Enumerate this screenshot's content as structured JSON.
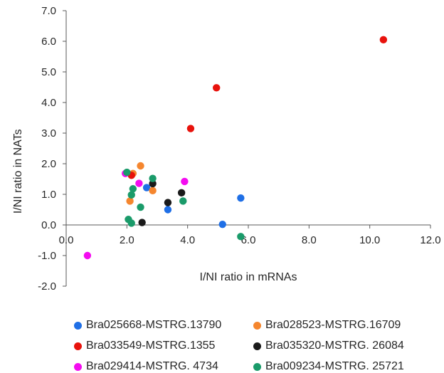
{
  "chart_data": {
    "type": "scatter",
    "title": "",
    "xlabel": "I/NI ratio in mRNAs",
    "ylabel": "I/NI ratio in NATs",
    "xlim": [
      0,
      12
    ],
    "ylim": [
      -2,
      7
    ],
    "x_ticks": [
      "0.0",
      "2.0",
      "4.0",
      "6.0",
      "8.0",
      "10.0",
      "12.0"
    ],
    "y_ticks": [
      "-2.0",
      "-1.0",
      "0.0",
      "1.0",
      "2.0",
      "3.0",
      "4.0",
      "5.0",
      "6.0",
      "7.0"
    ],
    "grid": false,
    "legend_position": "bottom",
    "series": [
      {
        "name": "Bra025668-MSTRG.13790",
        "color": "#1f6fe6",
        "points": [
          [
            2.65,
            1.22
          ],
          [
            3.35,
            0.5
          ],
          [
            5.15,
            0.02
          ],
          [
            5.75,
            0.88
          ]
        ]
      },
      {
        "name": "Bra028523-MSTRG.16709",
        "color": "#f5862e",
        "points": [
          [
            2.1,
            0.78
          ],
          [
            2.2,
            1.68
          ],
          [
            2.45,
            1.93
          ],
          [
            2.85,
            1.12
          ]
        ]
      },
      {
        "name": "Bra033549-MSTRG.1355",
        "color": "#e8120c",
        "points": [
          [
            2.15,
            1.62
          ],
          [
            4.1,
            3.15
          ],
          [
            4.95,
            4.48
          ],
          [
            10.45,
            6.05
          ]
        ]
      },
      {
        "name": "Bra035320-MSTRG. 26084",
        "color": "#1a1a1a",
        "points": [
          [
            2.5,
            0.08
          ],
          [
            2.85,
            1.35
          ],
          [
            3.35,
            0.73
          ],
          [
            3.8,
            1.05
          ]
        ]
      },
      {
        "name": "Bra029414-MSTRG. 4734",
        "color": "#f40cf0",
        "points": [
          [
            0.7,
            -1.0
          ],
          [
            1.95,
            1.68
          ],
          [
            2.4,
            1.36
          ],
          [
            3.9,
            1.42
          ]
        ]
      },
      {
        "name": "Bra009234-MSTRG. 25721",
        "color": "#1a9b6a",
        "points": [
          [
            2.0,
            1.72
          ],
          [
            2.05,
            0.18
          ],
          [
            2.15,
            0.06
          ],
          [
            2.15,
            0.98
          ],
          [
            2.2,
            1.18
          ],
          [
            2.45,
            0.58
          ],
          [
            2.85,
            1.52
          ],
          [
            3.85,
            0.78
          ],
          [
            5.75,
            -0.38
          ]
        ]
      }
    ]
  }
}
